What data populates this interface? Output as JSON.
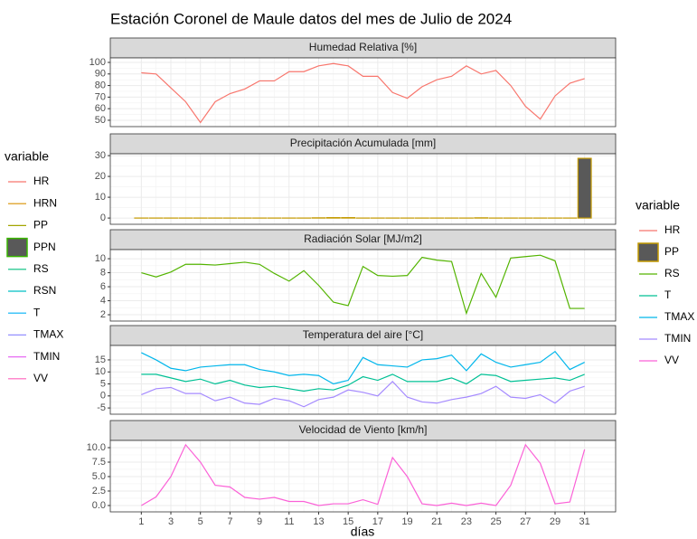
{
  "chart_data": {
    "title": "Estación Coronel de Maule datos del mes de Julio de 2024",
    "x_label": "días",
    "x": [
      1,
      2,
      3,
      4,
      5,
      6,
      7,
      8,
      9,
      10,
      11,
      12,
      13,
      14,
      15,
      16,
      17,
      18,
      19,
      20,
      21,
      22,
      23,
      24,
      25,
      26,
      27,
      28,
      29,
      30,
      31
    ],
    "xlim": [
      -1.1,
      33.1
    ],
    "xticks": [
      1,
      3,
      5,
      7,
      9,
      11,
      13,
      15,
      17,
      19,
      21,
      23,
      25,
      27,
      29,
      31
    ],
    "grid": true,
    "panels": [
      {
        "type": "line",
        "title": "Humedad Relativa [%]",
        "ylim": [
          44.5,
          103.9
        ],
        "yticks": [
          50,
          60,
          70,
          80,
          90,
          100
        ],
        "series": [
          {
            "name": "HR",
            "color": "#f8766d",
            "values": [
              91,
              90,
              78,
              66,
              48,
              66,
              73,
              77,
              84,
              84,
              92,
              92,
              97,
              99,
              97,
              88,
              88,
              74,
              69,
              79,
              85,
              88,
              97,
              90,
              93,
              80,
              62,
              51,
              71,
              82,
              86
            ]
          }
        ]
      },
      {
        "type": "bar",
        "title": "Precipitación Acumulada [mm]",
        "ylim": [
          -3,
          30.9
        ],
        "yticks": [
          0,
          10,
          20,
          30
        ],
        "series": [
          {
            "name": "PP",
            "color": "#c49a00",
            "fill": "#595959",
            "values": [
              0,
              0,
              0,
              0,
              0,
              0,
              0,
              0,
              0,
              0,
              0,
              0,
              0.1,
              0.2,
              0.2,
              0,
              0,
              0,
              0,
              0,
              0,
              0,
              0,
              0.1,
              0,
              0,
              0,
              0,
              0,
              0,
              28.7
            ]
          }
        ]
      },
      {
        "type": "line",
        "title": "Radiación Solar [MJ/m2]",
        "ylim": [
          1.1,
          11.3
        ],
        "yticks": [
          2,
          4,
          6,
          8,
          10
        ],
        "series": [
          {
            "name": "RS",
            "color": "#53b400",
            "values": [
              8.0,
              7.4,
              8.1,
              9.2,
              9.2,
              9.1,
              9.3,
              9.5,
              9.2,
              7.9,
              6.8,
              8.3,
              6.2,
              3.8,
              3.3,
              8.9,
              7.6,
              7.5,
              7.6,
              10.2,
              9.8,
              9.6,
              2.2,
              7.9,
              4.5,
              10.1,
              10.3,
              10.5,
              9.7,
              2.9,
              2.9
            ]
          }
        ]
      },
      {
        "type": "line",
        "title": "Temperatura del aire [°C]",
        "ylim": [
          -7.6,
          21.0
        ],
        "yticks": [
          -5,
          0,
          5,
          10,
          15
        ],
        "series": [
          {
            "name": "T",
            "color": "#00c094",
            "values": [
              9,
              9,
              7.5,
              6,
              7,
              5,
              6.5,
              4.5,
              3.5,
              4,
              3,
              2,
              3,
              2.5,
              4.5,
              8,
              6.5,
              9,
              6,
              6,
              6,
              7.5,
              5,
              9,
              8.5,
              6,
              6.5,
              7,
              7.5,
              6.5,
              9
            ]
          },
          {
            "name": "TMAX",
            "color": "#00b6eb",
            "values": [
              18,
              15,
              11.5,
              10.5,
              12,
              12.5,
              13,
              13,
              11,
              10,
              8.5,
              9,
              8.5,
              5,
              6.5,
              16,
              13,
              12.5,
              12,
              15,
              15.5,
              17,
              10.5,
              17.5,
              14,
              12,
              13,
              14,
              18.5,
              11,
              14
            ]
          },
          {
            "name": "TMIN",
            "color": "#a58aff",
            "values": [
              0.5,
              3,
              3.5,
              1,
              1,
              -2,
              -0.5,
              -3,
              -3.5,
              -1,
              -2,
              -4.5,
              -1.5,
              -0.5,
              2.5,
              1.5,
              0,
              6,
              -0.5,
              -2.5,
              -3,
              -1.5,
              -0.5,
              1,
              4,
              -0.5,
              -1,
              0.5,
              -3,
              2,
              4
            ]
          }
        ]
      },
      {
        "type": "line",
        "title": "Velocidad de Viento [km/h]",
        "ylim": [
          -1.1,
          11.25
        ],
        "yticks": [
          {
            "value": 0,
            "label": "0.0"
          },
          {
            "value": 2.5,
            "label": "2.5"
          },
          {
            "value": 5,
            "label": "5.0"
          },
          {
            "value": 7.5,
            "label": "7.5"
          },
          {
            "value": 10,
            "label": "10.0"
          }
        ],
        "series": [
          {
            "name": "VV",
            "color": "#fb61d7",
            "values": [
              0,
              1.5,
              5,
              10.5,
              7.5,
              3.5,
              3.2,
              1.4,
              1.1,
              1.4,
              0.7,
              0.7,
              0,
              0.3,
              0.3,
              1,
              0.2,
              8.3,
              5,
              0.3,
              0,
              0.4,
              0,
              0.4,
              0,
              3.5,
              10.5,
              7.3,
              0.3,
              0.6,
              9.7
            ]
          }
        ]
      }
    ],
    "legends": [
      {
        "title": "variable",
        "items": [
          {
            "name": "HR",
            "color": "#f8766d",
            "key": "line"
          },
          {
            "name": "HRN",
            "color": "#d89000",
            "key": "line"
          },
          {
            "name": "PP",
            "color": "#a3a500",
            "key": "line"
          },
          {
            "name": "PPN",
            "color": "#39b600",
            "fill": "#595959",
            "key": "box"
          },
          {
            "name": "RS",
            "color": "#00bf7d",
            "key": "line"
          },
          {
            "name": "RSN",
            "color": "#00bfc4",
            "key": "line"
          },
          {
            "name": "T",
            "color": "#00b0f6",
            "key": "line"
          },
          {
            "name": "TMAX",
            "color": "#9590ff",
            "key": "line"
          },
          {
            "name": "TMIN",
            "color": "#e76bf3",
            "key": "line"
          },
          {
            "name": "VV",
            "color": "#ff62bc",
            "key": "line"
          }
        ]
      },
      {
        "title": "variable",
        "items": [
          {
            "name": "HR",
            "color": "#f8766d",
            "key": "line"
          },
          {
            "name": "PP",
            "color": "#c49a00",
            "fill": "#595959",
            "key": "box"
          },
          {
            "name": "RS",
            "color": "#53b400",
            "key": "line"
          },
          {
            "name": "T",
            "color": "#00c094",
            "key": "line"
          },
          {
            "name": "TMAX",
            "color": "#00b6eb",
            "key": "line"
          },
          {
            "name": "TMIN",
            "color": "#a58aff",
            "key": "line"
          },
          {
            "name": "VV",
            "color": "#fb61d7",
            "key": "line"
          }
        ]
      }
    ]
  }
}
